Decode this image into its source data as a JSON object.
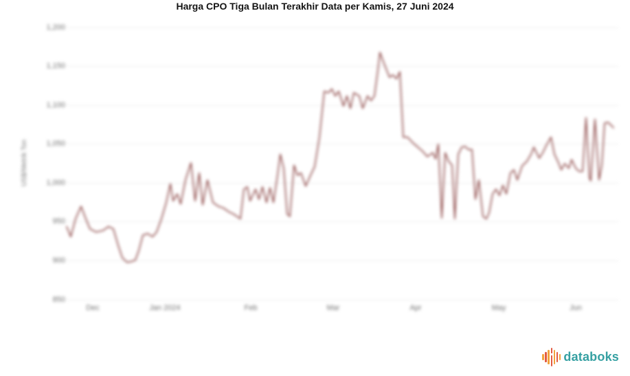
{
  "header": {
    "title": "Harga CPO Tiga Bulan Terakhir Data per Kamis, 27 Juni 2024"
  },
  "chart_data": {
    "type": "line",
    "title": "Harga CPO Tiga Bulan Terakhir Data per Kamis, 27 Juni 2024",
    "xlabel": "",
    "ylabel": "US$/Metrik Ton",
    "line_color": "#8e4a49",
    "grid_color": "#ebebeb",
    "axis_text_color": "#6e6e6e",
    "grid_on": true,
    "legend": "none",
    "ylim": [
      850,
      1200
    ],
    "y_ticks": [
      {
        "label": "850",
        "value": 850
      },
      {
        "label": "900",
        "value": 900
      },
      {
        "label": "950",
        "value": 950
      },
      {
        "label": "1,000",
        "value": 1000
      },
      {
        "label": "1,050",
        "value": 1050
      },
      {
        "label": "1,100",
        "value": 1100
      },
      {
        "label": "1,150",
        "value": 1150
      },
      {
        "label": "1,200",
        "value": 1200
      }
    ],
    "x_ticks": [
      {
        "label": "Dec",
        "px": 135
      },
      {
        "label": "Jan 2024",
        "px": 240
      },
      {
        "label": "Feb",
        "px": 365
      },
      {
        "label": "Mar",
        "px": 485
      },
      {
        "label": "Apr",
        "px": 605
      },
      {
        "label": "May",
        "px": 726
      },
      {
        "label": "Jun",
        "px": 838
      }
    ],
    "plot": {
      "left": 97,
      "right": 900,
      "y_top": 40,
      "y_bottom": 436,
      "tick_label_top": 442
    },
    "series": [
      {
        "name": "Harga CPO",
        "points": [
          [
            97,
            944
          ],
          [
            103,
            931
          ],
          [
            110,
            954
          ],
          [
            118,
            970
          ],
          [
            124,
            956
          ],
          [
            131,
            941
          ],
          [
            140,
            937
          ],
          [
            150,
            939
          ],
          [
            158,
            944
          ],
          [
            165,
            941
          ],
          [
            172,
            920
          ],
          [
            178,
            904
          ],
          [
            185,
            898
          ],
          [
            191,
            899
          ],
          [
            197,
            901
          ],
          [
            202,
            913
          ],
          [
            208,
            933
          ],
          [
            215,
            935
          ],
          [
            222,
            931
          ],
          [
            228,
            937
          ],
          [
            235,
            954
          ],
          [
            242,
            975
          ],
          [
            248,
            999
          ],
          [
            252,
            977
          ],
          [
            258,
            986
          ],
          [
            263,
            973
          ],
          [
            270,
            1004
          ],
          [
            278,
            1026
          ],
          [
            284,
            977
          ],
          [
            290,
            1013
          ],
          [
            295,
            972
          ],
          [
            302,
            1004
          ],
          [
            310,
            975
          ],
          [
            318,
            970
          ],
          [
            325,
            968
          ],
          [
            333,
            963
          ],
          [
            340,
            960
          ],
          [
            350,
            954
          ],
          [
            355,
            992
          ],
          [
            360,
            995
          ],
          [
            364,
            977
          ],
          [
            372,
            992
          ],
          [
            377,
            979
          ],
          [
            382,
            995
          ],
          [
            388,
            975
          ],
          [
            393,
            994
          ],
          [
            398,
            975
          ],
          [
            404,
            1010
          ],
          [
            408,
            1037
          ],
          [
            413,
            1019
          ],
          [
            418,
            960
          ],
          [
            422,
            957
          ],
          [
            428,
            1023
          ],
          [
            433,
            1010
          ],
          [
            438,
            1013
          ],
          [
            445,
            996
          ],
          [
            452,
            1010
          ],
          [
            458,
            1021
          ],
          [
            465,
            1059
          ],
          [
            472,
            1118
          ],
          [
            478,
            1116
          ],
          [
            483,
            1121
          ],
          [
            488,
            1112
          ],
          [
            493,
            1118
          ],
          [
            500,
            1099
          ],
          [
            505,
            1112
          ],
          [
            510,
            1096
          ],
          [
            515,
            1116
          ],
          [
            523,
            1112
          ],
          [
            528,
            1096
          ],
          [
            535,
            1112
          ],
          [
            540,
            1106
          ],
          [
            545,
            1112
          ],
          [
            550,
            1145
          ],
          [
            553,
            1168
          ],
          [
            558,
            1156
          ],
          [
            562,
            1147
          ],
          [
            567,
            1136
          ],
          [
            572,
            1139
          ],
          [
            577,
            1134
          ],
          [
            582,
            1143
          ],
          [
            587,
            1059
          ],
          [
            593,
            1059
          ],
          [
            603,
            1050
          ],
          [
            615,
            1041
          ],
          [
            622,
            1034
          ],
          [
            630,
            1039
          ],
          [
            634,
            1031
          ],
          [
            638,
            1050
          ],
          [
            643,
            955
          ],
          [
            648,
            1039
          ],
          [
            653,
            1028
          ],
          [
            658,
            1023
          ],
          [
            662,
            954
          ],
          [
            667,
            1037
          ],
          [
            672,
            1046
          ],
          [
            677,
            1047
          ],
          [
            682,
            1043
          ],
          [
            687,
            1043
          ],
          [
            692,
            979
          ],
          [
            697,
            1004
          ],
          [
            703,
            957
          ],
          [
            708,
            954
          ],
          [
            712,
            962
          ],
          [
            717,
            986
          ],
          [
            722,
            992
          ],
          [
            727,
            984
          ],
          [
            732,
            997
          ],
          [
            737,
            986
          ],
          [
            743,
            1013
          ],
          [
            748,
            1017
          ],
          [
            753,
            1004
          ],
          [
            760,
            1022
          ],
          [
            767,
            1028
          ],
          [
            773,
            1037
          ],
          [
            777,
            1046
          ],
          [
            785,
            1032
          ],
          [
            790,
            1039
          ],
          [
            795,
            1048
          ],
          [
            802,
            1059
          ],
          [
            807,
            1037
          ],
          [
            813,
            1026
          ],
          [
            817,
            1017
          ],
          [
            822,
            1025
          ],
          [
            828,
            1019
          ],
          [
            832,
            1030
          ],
          [
            838,
            1019
          ],
          [
            843,
            1015
          ],
          [
            848,
            1015
          ],
          [
            853,
            1084
          ],
          [
            858,
            1006
          ],
          [
            860,
            1003
          ],
          [
            866,
            1082
          ],
          [
            872,
            1004
          ],
          [
            876,
            1023
          ],
          [
            880,
            1077
          ],
          [
            885,
            1078
          ],
          [
            890,
            1074
          ],
          [
            893,
            1071
          ]
        ]
      }
    ]
  },
  "footer": {
    "logo_text": "databoks",
    "logo_text_color": "#35a0a2",
    "logo_icon": "databoks-bars-icon",
    "logo_icon_bars": [
      {
        "h": 9,
        "c": "#f2a33c"
      },
      {
        "h": 15,
        "c": "#e25a41"
      },
      {
        "h": 21,
        "c": "#f2a33c"
      },
      {
        "h": 27,
        "c": "#e25a41",
        "gap": true
      },
      {
        "h": 21,
        "c": "#f2a33c"
      },
      {
        "h": 15,
        "c": "#e25a41"
      },
      {
        "h": 9,
        "c": "#f2a33c"
      }
    ]
  }
}
